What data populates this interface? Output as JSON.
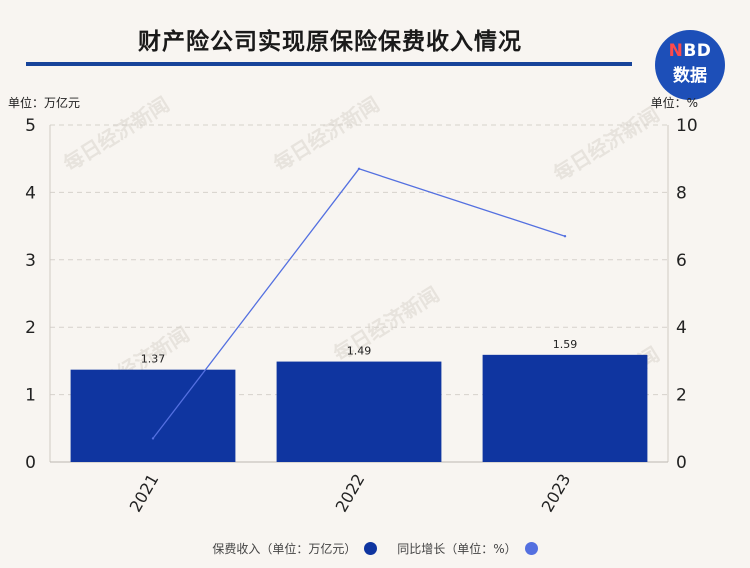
{
  "title": "财产险公司实现原保险保费收入情况",
  "logo": {
    "line1_n": "N",
    "line1_rest": "BD",
    "line2": "数据"
  },
  "watermark": "每日经济新闻",
  "colors": {
    "bar": "#0f35a0",
    "line": "#5470e0",
    "title_rule": "#17449a",
    "background": "#f8f5f1"
  },
  "chart_data": {
    "type": "bar",
    "categories": [
      "2021",
      "2022",
      "2023"
    ],
    "series": [
      {
        "name": "保费收入（单位：万亿元）",
        "type": "bar",
        "axis": "left",
        "values": [
          1.37,
          1.49,
          1.59
        ]
      },
      {
        "name": "同比增长（单位：%）",
        "type": "line",
        "axis": "right",
        "values": [
          0.7,
          8.7,
          6.7
        ]
      }
    ],
    "left_axis": {
      "unit_label": "单位：万亿元",
      "ylim": [
        0,
        5
      ],
      "ticks": [
        0,
        1,
        2,
        3,
        4,
        5
      ]
    },
    "right_axis": {
      "unit_label": "单位：%",
      "ylim": [
        0,
        10
      ],
      "ticks": [
        0,
        2,
        4,
        6,
        8,
        10
      ]
    },
    "data_labels": [
      "1.37",
      "1.49",
      "1.59"
    ],
    "grid": true,
    "legend_position": "bottom"
  }
}
